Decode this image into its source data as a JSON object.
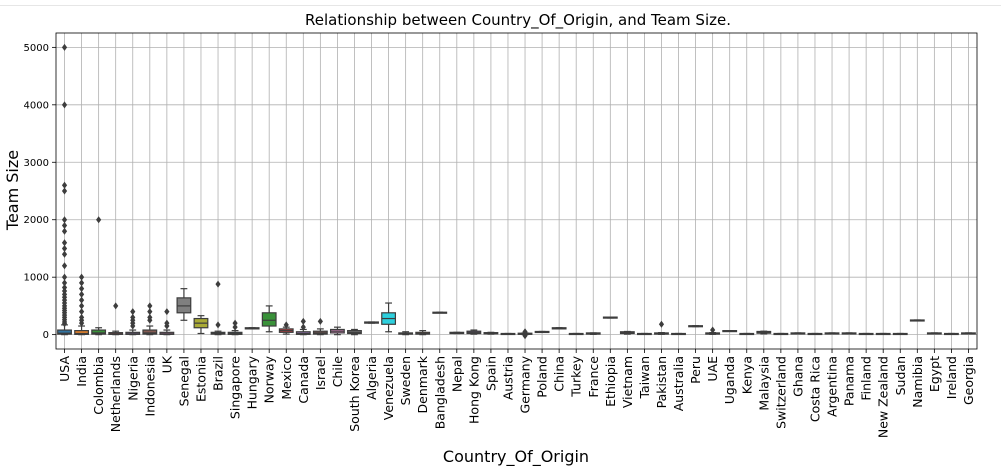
{
  "chart_data": {
    "type": "box",
    "title": "Relationship between Country_Of_Origin, and Team Size.",
    "xlabel": "Country_Of_Origin",
    "ylabel": "Team Size",
    "ylim": [
      -250,
      5250
    ],
    "yticks": [
      0,
      1000,
      2000,
      3000,
      4000,
      5000
    ],
    "grid": true,
    "categories": [
      "USA",
      "India",
      "Colombia",
      "Netherlands",
      "Nigeria",
      "Indonesia",
      "UK",
      "Senegal",
      "Estonia",
      "Brazil",
      "Singapore",
      "Hungary",
      "Norway",
      "Mexico",
      "Canada",
      "Israel",
      "Chile",
      "South Korea",
      "Algeria",
      "Venezuela",
      "Sweden",
      "Denmark",
      "Bangladesh",
      "Nepal",
      "Hong Kong",
      "Spain",
      "Austria",
      "Germany",
      "Poland",
      "China",
      "Turkey",
      "France",
      "Ethiopia",
      "Vietnam",
      "Taiwan",
      "Pakistan",
      "Australia",
      "Peru",
      "UAE",
      "Uganda",
      "Kenya",
      "Malaysia",
      "Switzerland",
      "Ghana",
      "Costa Rica",
      "Argentina",
      "Panama",
      "Finland",
      "New Zealand",
      "Sudan",
      "Namibia",
      "Egypt",
      "Ireland",
      "Georgia"
    ],
    "colors": [
      "#3274a1",
      "#e1812c",
      "#3a923a",
      "#c03d3e",
      "#9372b2",
      "#845b53",
      "#d684bd",
      "#7f7f7f",
      "#a9aa35",
      "#2ed0de"
    ],
    "boxes": [
      {
        "q1": 10,
        "median": 25,
        "q3": 80,
        "whislo": 0,
        "whishi": 170,
        "fliers": [
          190,
          220,
          260,
          300,
          340,
          380,
          420,
          460,
          500,
          550,
          600,
          650,
          700,
          760,
          820,
          900,
          1000,
          1200,
          1400,
          1500,
          1600,
          1800,
          1900,
          2000,
          2500,
          2600,
          4000,
          5000
        ]
      },
      {
        "q1": 5,
        "median": 20,
        "q3": 70,
        "whislo": 0,
        "whishi": 150,
        "fliers": [
          200,
          250,
          300,
          400,
          500,
          600,
          700,
          800,
          900,
          1000
        ]
      },
      {
        "q1": 10,
        "median": 30,
        "q3": 80,
        "whislo": 0,
        "whishi": 120,
        "fliers": [
          2000
        ]
      },
      {
        "q1": 5,
        "median": 15,
        "q3": 35,
        "whislo": 0,
        "whishi": 60,
        "fliers": [
          500
        ]
      },
      {
        "q1": 5,
        "median": 15,
        "q3": 40,
        "whislo": 0,
        "whishi": 80,
        "fliers": [
          150,
          200,
          250,
          300,
          400
        ]
      },
      {
        "q1": 10,
        "median": 30,
        "q3": 80,
        "whislo": 0,
        "whishi": 150,
        "fliers": [
          250,
          300,
          400,
          500
        ]
      },
      {
        "q1": 5,
        "median": 15,
        "q3": 40,
        "whislo": 0,
        "whishi": 80,
        "fliers": [
          150,
          200,
          400
        ]
      },
      {
        "q1": 380,
        "median": 500,
        "q3": 640,
        "whislo": 250,
        "whishi": 800,
        "fliers": []
      },
      {
        "q1": 120,
        "median": 200,
        "q3": 280,
        "whislo": 20,
        "whishi": 330,
        "fliers": []
      },
      {
        "q1": 10,
        "median": 25,
        "q3": 40,
        "whislo": 0,
        "whishi": 60,
        "fliers": [
          170,
          880
        ]
      },
      {
        "q1": 5,
        "median": 20,
        "q3": 40,
        "whislo": 0,
        "whishi": 70,
        "fliers": [
          130,
          200
        ]
      },
      {
        "q1": 100,
        "median": 110,
        "q3": 120,
        "whislo": 100,
        "whishi": 120,
        "fliers": []
      },
      {
        "q1": 150,
        "median": 250,
        "q3": 380,
        "whislo": 50,
        "whishi": 500,
        "fliers": []
      },
      {
        "q1": 40,
        "median": 70,
        "q3": 100,
        "whislo": 10,
        "whishi": 130,
        "fliers": [
          170
        ]
      },
      {
        "q1": 5,
        "median": 20,
        "q3": 50,
        "whislo": 0,
        "whishi": 90,
        "fliers": [
          130,
          230
        ]
      },
      {
        "q1": 10,
        "median": 30,
        "q3": 60,
        "whislo": 0,
        "whishi": 100,
        "fliers": [
          230
        ]
      },
      {
        "q1": 30,
        "median": 60,
        "q3": 90,
        "whislo": 0,
        "whishi": 130,
        "fliers": []
      },
      {
        "q1": 20,
        "median": 40,
        "q3": 70,
        "whislo": 0,
        "whishi": 90,
        "fliers": []
      },
      {
        "q1": 200,
        "median": 210,
        "q3": 220,
        "whislo": 200,
        "whishi": 220,
        "fliers": []
      },
      {
        "q1": 180,
        "median": 280,
        "q3": 380,
        "whislo": 50,
        "whishi": 550,
        "fliers": []
      },
      {
        "q1": 10,
        "median": 20,
        "q3": 30,
        "whislo": 0,
        "whishi": 50,
        "fliers": []
      },
      {
        "q1": 10,
        "median": 20,
        "q3": 40,
        "whislo": 0,
        "whishi": 70,
        "fliers": []
      },
      {
        "q1": 380,
        "median": 380,
        "q3": 390,
        "whislo": 380,
        "whishi": 390,
        "fliers": []
      },
      {
        "q1": 20,
        "median": 30,
        "q3": 40,
        "whislo": 20,
        "whishi": 40,
        "fliers": []
      },
      {
        "q1": 20,
        "median": 40,
        "q3": 60,
        "whislo": 10,
        "whishi": 80,
        "fliers": []
      },
      {
        "q1": 15,
        "median": 25,
        "q3": 35,
        "whislo": 10,
        "whishi": 40,
        "fliers": []
      },
      {
        "q1": 10,
        "median": 15,
        "q3": 20,
        "whislo": 10,
        "whishi": 20,
        "fliers": []
      },
      {
        "q1": 5,
        "median": 15,
        "q3": 25,
        "whislo": 0,
        "whishi": 30,
        "fliers": [
          -20,
          50
        ]
      },
      {
        "q1": 40,
        "median": 50,
        "q3": 55,
        "whislo": 40,
        "whishi": 55,
        "fliers": []
      },
      {
        "q1": 100,
        "median": 110,
        "q3": 120,
        "whislo": 100,
        "whishi": 120,
        "fliers": []
      },
      {
        "q1": 10,
        "median": 15,
        "q3": 20,
        "whislo": 10,
        "whishi": 20,
        "fliers": []
      },
      {
        "q1": 10,
        "median": 20,
        "q3": 30,
        "whislo": 5,
        "whishi": 30,
        "fliers": []
      },
      {
        "q1": 290,
        "median": 300,
        "q3": 305,
        "whislo": 290,
        "whishi": 305,
        "fliers": []
      },
      {
        "q1": 20,
        "median": 35,
        "q3": 50,
        "whislo": 10,
        "whishi": 55,
        "fliers": []
      },
      {
        "q1": 10,
        "median": 15,
        "q3": 20,
        "whislo": 10,
        "whishi": 20,
        "fliers": []
      },
      {
        "q1": 10,
        "median": 20,
        "q3": 30,
        "whislo": 5,
        "whishi": 35,
        "fliers": [
          180
        ]
      },
      {
        "q1": 10,
        "median": 15,
        "q3": 20,
        "whislo": 10,
        "whishi": 20,
        "fliers": []
      },
      {
        "q1": 140,
        "median": 150,
        "q3": 155,
        "whislo": 140,
        "whishi": 155,
        "fliers": []
      },
      {
        "q1": 10,
        "median": 20,
        "q3": 30,
        "whislo": 5,
        "whishi": 35,
        "fliers": [
          80
        ]
      },
      {
        "q1": 60,
        "median": 65,
        "q3": 70,
        "whislo": 60,
        "whishi": 70,
        "fliers": []
      },
      {
        "q1": 10,
        "median": 15,
        "q3": 20,
        "whislo": 10,
        "whishi": 20,
        "fliers": []
      },
      {
        "q1": 25,
        "median": 40,
        "q3": 55,
        "whislo": 15,
        "whishi": 60,
        "fliers": []
      },
      {
        "q1": 10,
        "median": 15,
        "q3": 20,
        "whislo": 10,
        "whishi": 20,
        "fliers": []
      },
      {
        "q1": 20,
        "median": 25,
        "q3": 30,
        "whislo": 20,
        "whishi": 30,
        "fliers": []
      },
      {
        "q1": 10,
        "median": 15,
        "q3": 20,
        "whislo": 10,
        "whishi": 20,
        "fliers": []
      },
      {
        "q1": 20,
        "median": 25,
        "q3": 30,
        "whislo": 20,
        "whishi": 30,
        "fliers": []
      },
      {
        "q1": 20,
        "median": 25,
        "q3": 30,
        "whislo": 20,
        "whishi": 30,
        "fliers": []
      },
      {
        "q1": 10,
        "median": 15,
        "q3": 20,
        "whislo": 10,
        "whishi": 20,
        "fliers": []
      },
      {
        "q1": 10,
        "median": 15,
        "q3": 20,
        "whislo": 10,
        "whishi": 20,
        "fliers": []
      },
      {
        "q1": 10,
        "median": 15,
        "q3": 20,
        "whislo": 10,
        "whishi": 20,
        "fliers": []
      },
      {
        "q1": 240,
        "median": 250,
        "q3": 255,
        "whislo": 240,
        "whishi": 255,
        "fliers": []
      },
      {
        "q1": 20,
        "median": 25,
        "q3": 30,
        "whislo": 20,
        "whishi": 30,
        "fliers": []
      },
      {
        "q1": 10,
        "median": 15,
        "q3": 20,
        "whislo": 10,
        "whishi": 20,
        "fliers": []
      },
      {
        "q1": 20,
        "median": 25,
        "q3": 30,
        "whislo": 20,
        "whishi": 30,
        "fliers": []
      }
    ]
  }
}
